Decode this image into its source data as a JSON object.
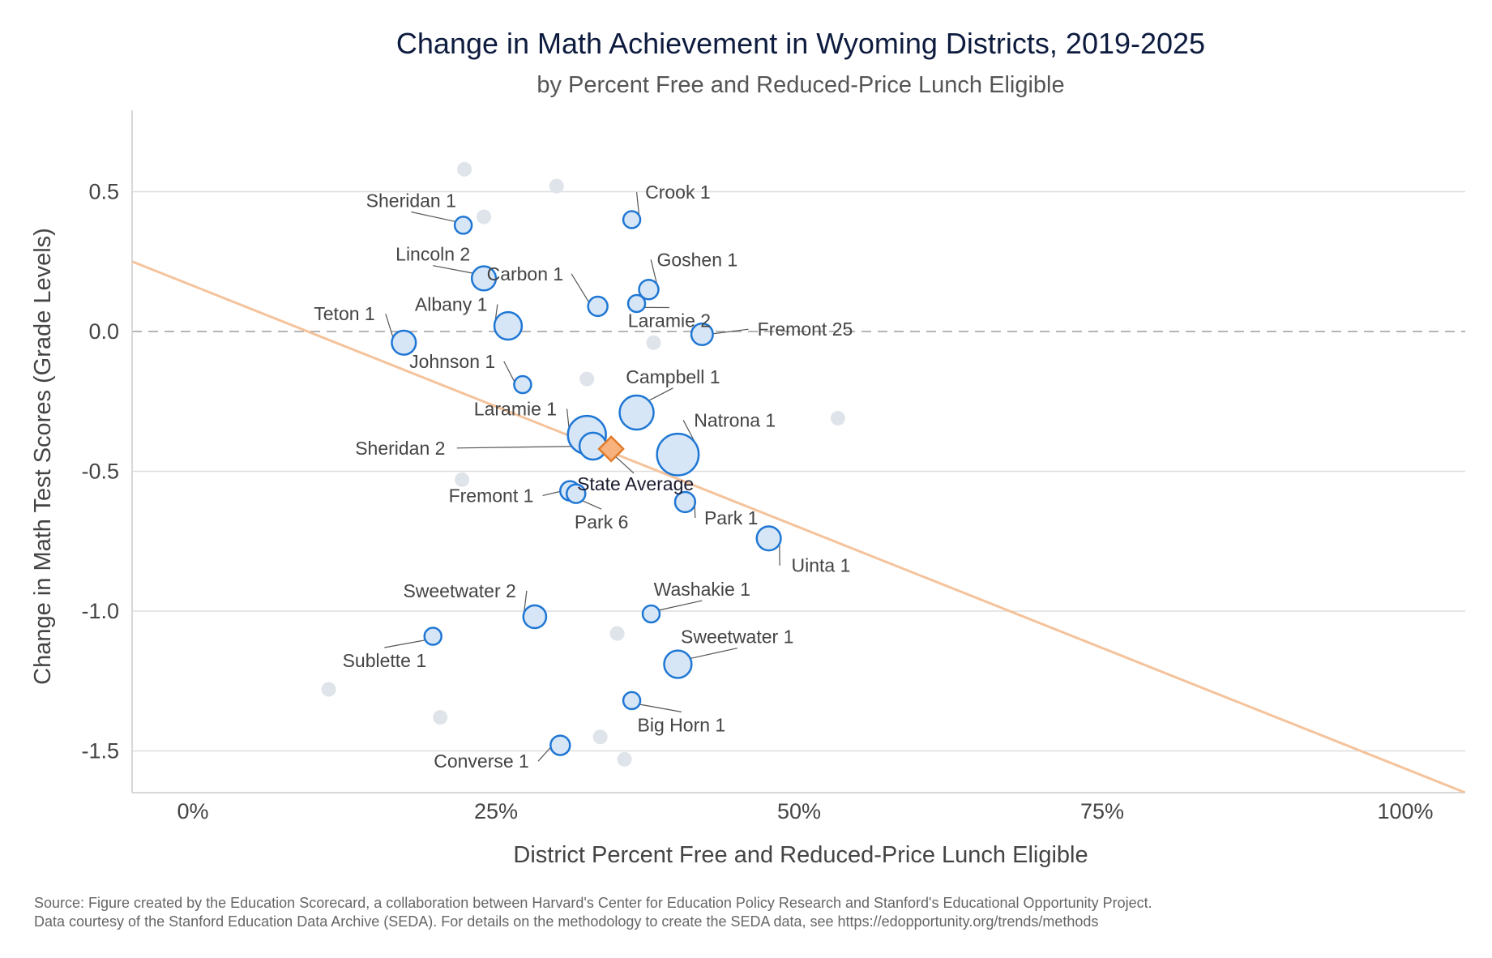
{
  "chart_data": {
    "type": "scatter",
    "title": "Change in Math Achievement in Wyoming Districts, 2019-2025",
    "subtitle": "by Percent Free and Reduced-Price Lunch Eligible",
    "xlabel": "District Percent Free and Reduced-Price Lunch Eligible",
    "ylabel": "Change in Math Test Scores (Grade Levels)",
    "xlim": [
      -0.05,
      1.05
    ],
    "ylim": [
      -1.65,
      0.79
    ],
    "x_ticks": [
      {
        "value": 0,
        "label": "0%"
      },
      {
        "value": 0.25,
        "label": "25%"
      },
      {
        "value": 0.5,
        "label": "50%"
      },
      {
        "value": 0.75,
        "label": "75%"
      },
      {
        "value": 1.0,
        "label": "100%"
      }
    ],
    "y_ticks": [
      {
        "value": 0.5,
        "label": "0.5"
      },
      {
        "value": 0,
        "label": "0.0"
      },
      {
        "value": -0.5,
        "label": "-0.5"
      },
      {
        "value": -1.0,
        "label": "-1.0"
      },
      {
        "value": -1.5,
        "label": "-1.5"
      }
    ],
    "grid": true,
    "zero_line": "dashed",
    "trend_line": {
      "points": [
        [
          -0.05,
          0.25
        ],
        [
          1.05,
          -1.65
        ]
      ],
      "color": "#f5c39b"
    },
    "colors": {
      "labeled_fill": "#d6e6f7",
      "labeled_stroke": "#1f77d4",
      "unlabeled_fill": "#dfe4ea",
      "state_fill": "#f8b27e",
      "state_stroke": "#e07b2a",
      "grid": "#dddddd",
      "zero_line": "#b5b5b5",
      "leader": "#555555"
    },
    "state_average": {
      "label": "State Average",
      "x": 0.345,
      "y": -0.42
    },
    "labeled_districts": [
      {
        "name": "Sheridan 1",
        "x": 0.223,
        "y": 0.38,
        "size": 1,
        "lx": 0.18,
        "ly": 0.445,
        "anchor": "middle"
      },
      {
        "name": "Crook 1",
        "x": 0.362,
        "y": 0.4,
        "size": 1,
        "lx": 0.4,
        "ly": 0.475,
        "anchor": "middle"
      },
      {
        "name": "Lincoln 2",
        "x": 0.24,
        "y": 0.19,
        "size": 2,
        "lx": 0.198,
        "ly": 0.253,
        "anchor": "middle"
      },
      {
        "name": "Goshen 1",
        "x": 0.376,
        "y": 0.15,
        "size": 1.3,
        "lx": 0.416,
        "ly": 0.234,
        "anchor": "middle"
      },
      {
        "name": "Carbon 1",
        "x": 0.334,
        "y": 0.09,
        "size": 1.3,
        "lx": 0.274,
        "ly": 0.183,
        "anchor": "middle"
      },
      {
        "name": "Albany 1",
        "x": 0.26,
        "y": 0.02,
        "size": 2.6,
        "lx": 0.213,
        "ly": 0.074,
        "anchor": "middle"
      },
      {
        "name": "Laramie 2",
        "x": 0.366,
        "y": 0.1,
        "size": 1,
        "lx": 0.393,
        "ly": 0.016,
        "anchor": "middle"
      },
      {
        "name": "Fremont 25",
        "x": 0.42,
        "y": -0.01,
        "size": 1.6,
        "lx": 0.505,
        "ly": -0.015,
        "anchor": "middle"
      },
      {
        "name": "Teton 1",
        "x": 0.174,
        "y": -0.04,
        "size": 2,
        "lx": 0.125,
        "ly": 0.04,
        "anchor": "middle"
      },
      {
        "name": "Johnson 1",
        "x": 0.272,
        "y": -0.19,
        "size": 1,
        "lx": 0.214,
        "ly": -0.13,
        "anchor": "middle"
      },
      {
        "name": "Campbell 1",
        "x": 0.366,
        "y": -0.29,
        "size": 4,
        "lx": 0.396,
        "ly": -0.185,
        "anchor": "middle"
      },
      {
        "name": "Laramie 1",
        "x": 0.325,
        "y": -0.37,
        "size": 5,
        "lx": 0.266,
        "ly": -0.3,
        "anchor": "middle"
      },
      {
        "name": "Natrona 1",
        "x": 0.4,
        "y": -0.44,
        "size": 6,
        "lx": 0.447,
        "ly": -0.34,
        "anchor": "middle"
      },
      {
        "name": "Sheridan 2",
        "x": 0.33,
        "y": -0.41,
        "size": 2.5,
        "lx": 0.171,
        "ly": -0.44,
        "anchor": "middle"
      },
      {
        "name": "Fremont 1",
        "x": 0.311,
        "y": -0.57,
        "size": 1.3,
        "lx": 0.246,
        "ly": -0.61,
        "anchor": "middle"
      },
      {
        "name": "Park 6",
        "x": 0.316,
        "y": -0.58,
        "size": 1.2,
        "lx": 0.337,
        "ly": -0.705,
        "anchor": "middle"
      },
      {
        "name": "Park 1",
        "x": 0.406,
        "y": -0.61,
        "size": 1.4,
        "lx": 0.444,
        "ly": -0.69,
        "anchor": "middle"
      },
      {
        "name": "Uinta 1",
        "x": 0.475,
        "y": -0.74,
        "size": 2,
        "lx": 0.518,
        "ly": -0.86,
        "anchor": "middle"
      },
      {
        "name": "Sweetwater 2",
        "x": 0.282,
        "y": -1.02,
        "size": 1.8,
        "lx": 0.22,
        "ly": -0.95,
        "anchor": "middle"
      },
      {
        "name": "Washakie 1",
        "x": 0.378,
        "y": -1.01,
        "size": 1,
        "lx": 0.42,
        "ly": -0.945,
        "anchor": "middle"
      },
      {
        "name": "Sublette 1",
        "x": 0.198,
        "y": -1.09,
        "size": 1,
        "lx": 0.158,
        "ly": -1.2,
        "anchor": "middle"
      },
      {
        "name": "Sweetwater 1",
        "x": 0.4,
        "y": -1.19,
        "size": 2.6,
        "lx": 0.449,
        "ly": -1.115,
        "anchor": "middle"
      },
      {
        "name": "Big Horn 1",
        "x": 0.362,
        "y": -1.32,
        "size": 1,
        "lx": 0.403,
        "ly": -1.43,
        "anchor": "middle"
      },
      {
        "name": "Converse 1",
        "x": 0.303,
        "y": -1.48,
        "size": 1.3,
        "lx": 0.238,
        "ly": -1.56,
        "anchor": "middle"
      }
    ],
    "unlabeled_districts": [
      {
        "x": 0.224,
        "y": 0.58
      },
      {
        "x": 0.3,
        "y": 0.52
      },
      {
        "x": 0.24,
        "y": 0.41
      },
      {
        "x": 0.38,
        "y": -0.04
      },
      {
        "x": 0.325,
        "y": -0.17
      },
      {
        "x": 0.532,
        "y": -0.31
      },
      {
        "x": 0.222,
        "y": -0.53
      },
      {
        "x": 0.35,
        "y": -1.08
      },
      {
        "x": 0.112,
        "y": -1.28
      },
      {
        "x": 0.204,
        "y": -1.38
      },
      {
        "x": 0.336,
        "y": -1.45
      },
      {
        "x": 0.356,
        "y": -1.53
      }
    ]
  },
  "source": {
    "line1": "Source: Figure created by the Education Scorecard, a collaboration between Harvard's Center for Education Policy Research and Stanford's Educational Opportunity Project.",
    "line2": "Data courtesy of the Stanford Education Data Archive (SEDA). For details on the methodology to create the SEDA data, see https://edopportunity.org/trends/methods"
  }
}
